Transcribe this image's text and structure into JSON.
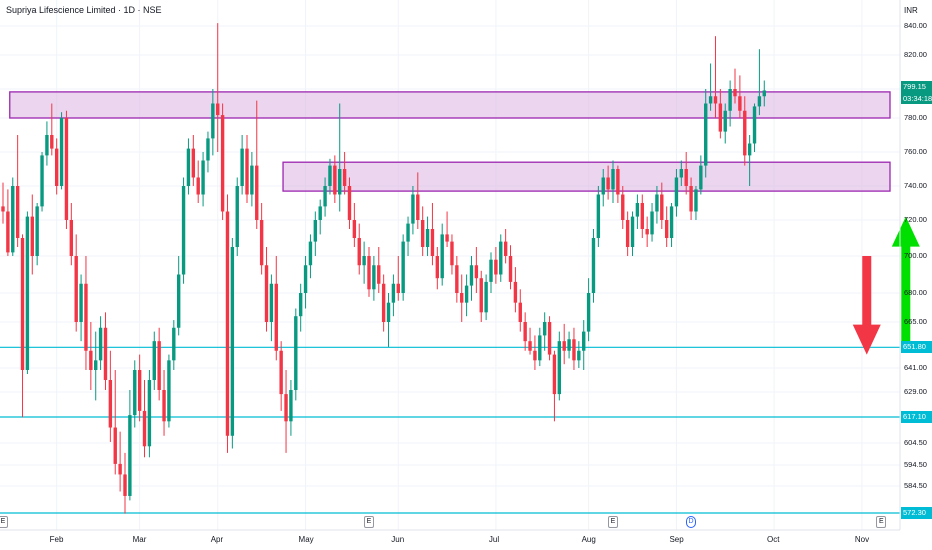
{
  "header": {
    "title": "Supriya Lifescience Limited · 1D · NSE",
    "currency": "INR"
  },
  "last_price": {
    "value": "799.15",
    "countdown": "03:34:18",
    "color": "#089981"
  },
  "colors": {
    "up": "#089981",
    "down": "#f23645",
    "zone_fill": "#e1bee7",
    "zone_border": "#9c27b0",
    "hline": "#00bcd4",
    "arrow_down": "#f23645",
    "arrow_up": "#00e000"
  },
  "chart_data": {
    "type": "candlestick",
    "x_labels": [
      "Feb",
      "Mar",
      "Apr",
      "May",
      "Jun",
      "Jul",
      "Aug",
      "Sep",
      "Oct",
      "Nov"
    ],
    "x_label_candle_index": [
      11,
      28,
      44,
      62,
      81,
      101,
      120,
      138,
      158,
      176
    ],
    "y_ticks": [
      "840.00",
      "820.00",
      "800.00",
      "780.00",
      "760.00",
      "740.00",
      "720.00",
      "700.00",
      "680.00",
      "665.00",
      "641.00",
      "629.00",
      "617.10",
      "604.50",
      "594.50",
      "584.50",
      "572.30"
    ],
    "y_tick_values": [
      840,
      820,
      800,
      780,
      760,
      740,
      720,
      700,
      680,
      665,
      641,
      629,
      617.1,
      604.5,
      594.5,
      584.5,
      572.3
    ],
    "price_labels": [
      {
        "text": "651.80",
        "value": 651.8
      },
      {
        "text": "617.10",
        "value": 617.1
      },
      {
        "text": "572.30",
        "value": 572.3
      }
    ],
    "zones": [
      {
        "low": 780,
        "high": 798,
        "from_index": 2
      },
      {
        "low": 737,
        "high": 754,
        "from_index": 58
      }
    ],
    "event_markers": [
      {
        "label": "E",
        "index": 0,
        "kind": "earnings"
      },
      {
        "label": "E",
        "index": 75,
        "kind": "earnings"
      },
      {
        "label": "E",
        "index": 125,
        "kind": "earnings"
      },
      {
        "label": "D",
        "index": 141,
        "kind": "dividend"
      },
      {
        "label": "E",
        "index": 180,
        "kind": "earnings"
      }
    ],
    "arrows": [
      {
        "direction": "down",
        "from": 700,
        "to": 648,
        "index": 177
      },
      {
        "direction": "up",
        "from": 652,
        "to": 722,
        "index": 185
      }
    ],
    "candles": [
      [
        728,
        742,
        718,
        725
      ],
      [
        725,
        738,
        700,
        702
      ],
      [
        702,
        745,
        700,
        740
      ],
      [
        740,
        770,
        705,
        710
      ],
      [
        710,
        712,
        617,
        640
      ],
      [
        640,
        725,
        638,
        722
      ],
      [
        722,
        735,
        690,
        700
      ],
      [
        700,
        730,
        695,
        728
      ],
      [
        728,
        760,
        725,
        758
      ],
      [
        758,
        778,
        752,
        770
      ],
      [
        770,
        790,
        758,
        762
      ],
      [
        762,
        768,
        735,
        740
      ],
      [
        740,
        784,
        738,
        780
      ],
      [
        780,
        785,
        715,
        720
      ],
      [
        720,
        730,
        695,
        700
      ],
      [
        700,
        712,
        660,
        665
      ],
      [
        665,
        690,
        655,
        685
      ],
      [
        685,
        700,
        640,
        650
      ],
      [
        650,
        665,
        630,
        640
      ],
      [
        640,
        660,
        625,
        645
      ],
      [
        645,
        668,
        640,
        662
      ],
      [
        662,
        670,
        630,
        635
      ],
      [
        635,
        650,
        605,
        612
      ],
      [
        612,
        640,
        590,
        595
      ],
      [
        595,
        610,
        582,
        590
      ],
      [
        590,
        600,
        572,
        580
      ],
      [
        580,
        630,
        578,
        618
      ],
      [
        618,
        645,
        612,
        640
      ],
      [
        640,
        648,
        615,
        620
      ],
      [
        620,
        635,
        598,
        603
      ],
      [
        603,
        640,
        598,
        635
      ],
      [
        635,
        660,
        630,
        655
      ],
      [
        655,
        662,
        625,
        630
      ],
      [
        630,
        640,
        608,
        615
      ],
      [
        615,
        648,
        612,
        645
      ],
      [
        645,
        666,
        640,
        662
      ],
      [
        662,
        700,
        658,
        690
      ],
      [
        690,
        745,
        685,
        740
      ],
      [
        740,
        768,
        735,
        762
      ],
      [
        762,
        770,
        740,
        745
      ],
      [
        745,
        755,
        730,
        735
      ],
      [
        735,
        760,
        728,
        755
      ],
      [
        755,
        772,
        748,
        768
      ],
      [
        768,
        800,
        758,
        790
      ],
      [
        790,
        842,
        760,
        782
      ],
      [
        782,
        790,
        720,
        725
      ],
      [
        725,
        735,
        600,
        608
      ],
      [
        608,
        710,
        602,
        705
      ],
      [
        705,
        745,
        700,
        740
      ],
      [
        740,
        770,
        735,
        762
      ],
      [
        762,
        770,
        730,
        735
      ],
      [
        735,
        760,
        728,
        752
      ],
      [
        752,
        792,
        715,
        720
      ],
      [
        720,
        730,
        690,
        695
      ],
      [
        695,
        705,
        660,
        665
      ],
      [
        665,
        690,
        655,
        685
      ],
      [
        685,
        700,
        645,
        650
      ],
      [
        650,
        655,
        620,
        628
      ],
      [
        628,
        640,
        600,
        615
      ],
      [
        615,
        635,
        608,
        630
      ],
      [
        630,
        672,
        625,
        668
      ],
      [
        668,
        685,
        660,
        680
      ],
      [
        680,
        700,
        672,
        695
      ],
      [
        695,
        712,
        688,
        708
      ],
      [
        708,
        725,
        700,
        720
      ],
      [
        720,
        732,
        712,
        728
      ],
      [
        728,
        745,
        722,
        740
      ],
      [
        740,
        756,
        735,
        752
      ],
      [
        752,
        758,
        730,
        735
      ],
      [
        735,
        790,
        725,
        750
      ],
      [
        750,
        760,
        735,
        740
      ],
      [
        740,
        745,
        715,
        720
      ],
      [
        720,
        730,
        705,
        710
      ],
      [
        710,
        718,
        690,
        695
      ],
      [
        695,
        708,
        685,
        700
      ],
      [
        700,
        705,
        678,
        682
      ],
      [
        682,
        700,
        676,
        695
      ],
      [
        695,
        705,
        680,
        685
      ],
      [
        685,
        690,
        660,
        665
      ],
      [
        665,
        680,
        652,
        675
      ],
      [
        675,
        690,
        668,
        685
      ],
      [
        685,
        700,
        676,
        680
      ],
      [
        680,
        712,
        676,
        708
      ],
      [
        708,
        722,
        700,
        718
      ],
      [
        718,
        740,
        712,
        735
      ],
      [
        735,
        748,
        715,
        720
      ],
      [
        720,
        728,
        700,
        705
      ],
      [
        705,
        722,
        700,
        715
      ],
      [
        715,
        730,
        695,
        700
      ],
      [
        700,
        705,
        682,
        688
      ],
      [
        688,
        718,
        684,
        712
      ],
      [
        712,
        725,
        705,
        708
      ],
      [
        708,
        712,
        690,
        695
      ],
      [
        695,
        700,
        675,
        680
      ],
      [
        680,
        690,
        665,
        675
      ],
      [
        675,
        690,
        668,
        684
      ],
      [
        684,
        700,
        676,
        695
      ],
      [
        695,
        705,
        680,
        688
      ],
      [
        688,
        692,
        665,
        670
      ],
      [
        670,
        690,
        666,
        686
      ],
      [
        686,
        702,
        680,
        698
      ],
      [
        698,
        705,
        685,
        690
      ],
      [
        690,
        712,
        686,
        708
      ],
      [
        708,
        715,
        696,
        700
      ],
      [
        700,
        706,
        682,
        686
      ],
      [
        686,
        694,
        670,
        675
      ],
      [
        675,
        682,
        660,
        665
      ],
      [
        665,
        670,
        650,
        655
      ],
      [
        655,
        662,
        648,
        650
      ],
      [
        650,
        658,
        640,
        645
      ],
      [
        645,
        662,
        642,
        658
      ],
      [
        658,
        670,
        650,
        665
      ],
      [
        665,
        668,
        645,
        648
      ],
      [
        648,
        650,
        615,
        628
      ],
      [
        628,
        660,
        625,
        655
      ],
      [
        655,
        664,
        643,
        650
      ],
      [
        650,
        660,
        646,
        656
      ],
      [
        656,
        662,
        640,
        645
      ],
      [
        645,
        655,
        641,
        650
      ],
      [
        650,
        666,
        640,
        660
      ],
      [
        660,
        688,
        655,
        680
      ],
      [
        680,
        715,
        675,
        710
      ],
      [
        710,
        740,
        705,
        735
      ],
      [
        735,
        750,
        728,
        745
      ],
      [
        745,
        752,
        732,
        738
      ],
      [
        738,
        755,
        730,
        750
      ],
      [
        750,
        752,
        730,
        735
      ],
      [
        735,
        740,
        715,
        720
      ],
      [
        720,
        725,
        700,
        705
      ],
      [
        705,
        725,
        700,
        722
      ],
      [
        722,
        735,
        715,
        730
      ],
      [
        730,
        735,
        710,
        715
      ],
      [
        715,
        722,
        705,
        712
      ],
      [
        712,
        730,
        708,
        725
      ],
      [
        725,
        740,
        718,
        735
      ],
      [
        735,
        742,
        715,
        720
      ],
      [
        720,
        728,
        705,
        710
      ],
      [
        710,
        730,
        705,
        728
      ],
      [
        728,
        750,
        722,
        745
      ],
      [
        745,
        755,
        740,
        750
      ],
      [
        750,
        760,
        735,
        740
      ],
      [
        740,
        745,
        720,
        725
      ],
      [
        725,
        740,
        720,
        738
      ],
      [
        738,
        758,
        735,
        752
      ],
      [
        752,
        800,
        745,
        790
      ],
      [
        790,
        815,
        785,
        795
      ],
      [
        795,
        833,
        780,
        790
      ],
      [
        790,
        800,
        768,
        772
      ],
      [
        772,
        790,
        765,
        785
      ],
      [
        785,
        805,
        775,
        800
      ],
      [
        800,
        812,
        790,
        795
      ],
      [
        795,
        808,
        780,
        785
      ],
      [
        785,
        795,
        752,
        758
      ],
      [
        758,
        770,
        740,
        765
      ],
      [
        765,
        790,
        760,
        788
      ],
      [
        788,
        824,
        782,
        795
      ],
      [
        795,
        805,
        788,
        799
      ]
    ]
  }
}
